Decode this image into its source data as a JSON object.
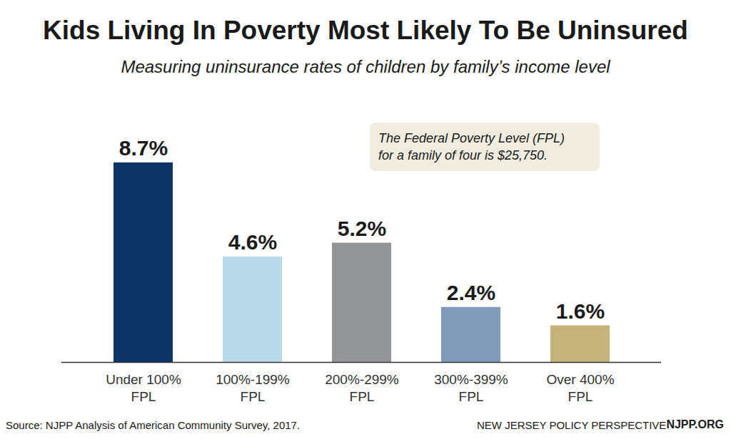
{
  "chart_data": {
    "type": "bar",
    "title": "Kids Living In Poverty Most Likely To Be Uninsured",
    "subtitle": "Measuring uninsurance rates of children by family’s income level",
    "categories": [
      "Under 100%\nFPL",
      "100%-199%\nFPL",
      "200%-299%\nFPL",
      "300%-399%\nFPL",
      "Over 400%\nFPL"
    ],
    "values": [
      8.7,
      4.6,
      5.2,
      2.4,
      1.6
    ],
    "value_labels": [
      "8.7%",
      "4.6%",
      "5.2%",
      "2.4%",
      "1.6%"
    ],
    "colors": [
      "#0d3466",
      "#bad9e8",
      "#939598",
      "#7f9bb9",
      "#c5b37b"
    ],
    "ylim": [
      0,
      10
    ],
    "data_labels": true,
    "tick_labels": "x",
    "grid": false,
    "annotation": "The Federal Poverty Level (FPL)\nfor a family of four is $25,750.",
    "source": "Source: NJPP Analysis of American Community Survey, 2017.",
    "footer": [
      "NEW JERSEY POLICY PERSPECTIVE",
      "NJPP.ORG"
    ]
  }
}
